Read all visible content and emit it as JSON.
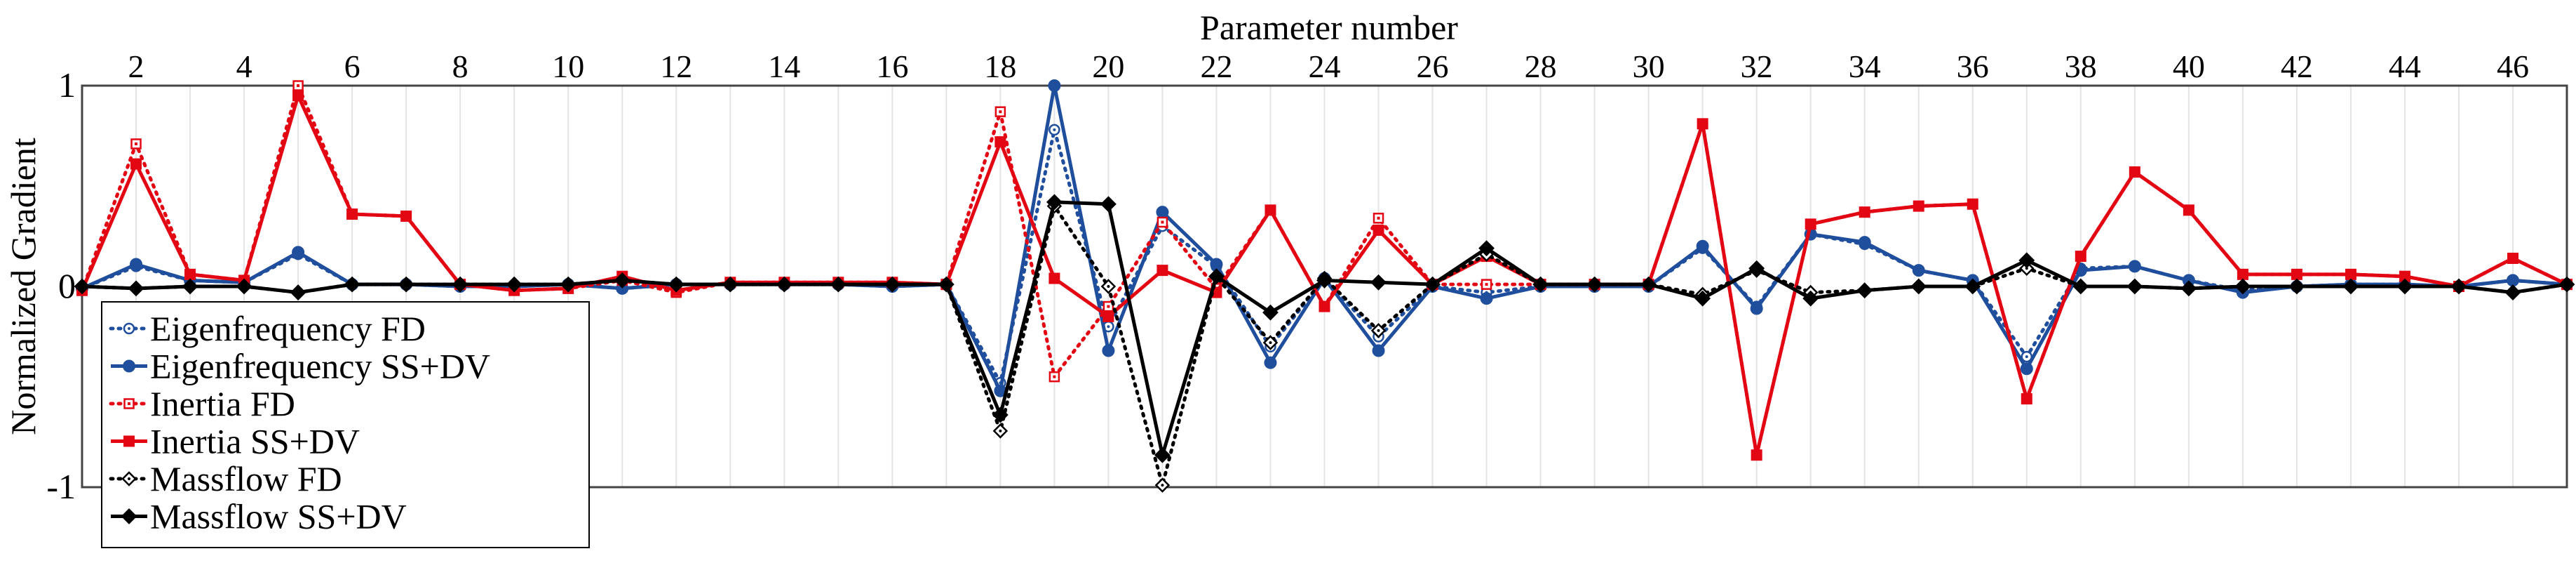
{
  "chart_data": {
    "type": "line",
    "title": "",
    "xlabel": "Parameter number",
    "ylabel": "Normalized Gradient",
    "xlim": [
      1,
      47
    ],
    "ylim": [
      -1,
      1
    ],
    "x_ticks": [
      2,
      4,
      6,
      8,
      10,
      12,
      14,
      16,
      18,
      20,
      22,
      24,
      26,
      28,
      30,
      32,
      34,
      36,
      38,
      40,
      42,
      44,
      46
    ],
    "y_ticks": [
      1,
      0,
      -1
    ],
    "y_tick_labels": [
      "1",
      "0",
      "-1"
    ],
    "grid": "vertical",
    "legend_position": "bottom-left",
    "x": [
      1,
      2,
      3,
      4,
      5,
      6,
      7,
      8,
      9,
      10,
      11,
      12,
      13,
      14,
      15,
      16,
      17,
      18,
      19,
      20,
      21,
      22,
      23,
      24,
      25,
      26,
      27,
      28,
      29,
      30,
      31,
      32,
      33,
      34,
      35,
      36,
      37,
      38,
      39,
      40,
      41,
      42,
      43,
      44,
      45,
      46,
      47
    ],
    "series": [
      {
        "name": "Eigenfrequency FD",
        "color": "#1f4e9c",
        "style": "dotted",
        "marker": "circle-open",
        "values": [
          -0.01,
          0.1,
          0.03,
          0.02,
          0.16,
          0.01,
          0.01,
          0.0,
          0.0,
          0.01,
          -0.01,
          0.01,
          0.01,
          0.01,
          0.01,
          0.0,
          0.01,
          -0.48,
          0.78,
          -0.2,
          0.3,
          0.1,
          -0.3,
          0.04,
          -0.25,
          0.0,
          -0.03,
          0.0,
          0.0,
          0.0,
          0.19,
          -0.1,
          0.26,
          0.21,
          0.08,
          0.03,
          -0.35,
          0.09,
          0.1,
          0.03,
          -0.02,
          0.0,
          0.01,
          0.01,
          0.0,
          0.03,
          0.01
        ]
      },
      {
        "name": "Eigenfrequency SS+DV",
        "color": "#1f4e9c",
        "style": "solid",
        "marker": "circle-filled",
        "values": [
          -0.01,
          0.11,
          0.03,
          0.02,
          0.17,
          0.01,
          0.01,
          0.0,
          0.0,
          0.01,
          -0.01,
          0.01,
          0.01,
          0.01,
          0.01,
          0.0,
          0.01,
          -0.52,
          1.0,
          -0.32,
          0.37,
          0.11,
          -0.38,
          0.04,
          -0.32,
          0.0,
          -0.06,
          0.0,
          0.0,
          0.0,
          0.2,
          -0.11,
          0.26,
          0.22,
          0.08,
          0.03,
          -0.41,
          0.08,
          0.1,
          0.03,
          -0.03,
          0.0,
          0.01,
          0.01,
          0.0,
          0.03,
          0.01
        ]
      },
      {
        "name": "Inertia FD",
        "color": "#e30613",
        "style": "dotted",
        "marker": "square-open",
        "values": [
          -0.02,
          0.71,
          0.06,
          0.03,
          1.0,
          0.36,
          0.35,
          0.01,
          -0.02,
          -0.01,
          0.03,
          -0.03,
          0.02,
          0.02,
          0.02,
          0.02,
          0.01,
          0.87,
          -0.45,
          -0.1,
          0.32,
          -0.01,
          0.38,
          -0.1,
          0.34,
          0.01,
          0.01,
          0.01,
          0.01,
          0.01,
          0.81,
          -0.84,
          0.31,
          0.37,
          0.4,
          0.41,
          -0.56,
          0.15,
          0.57,
          0.38,
          0.06,
          0.06,
          0.06,
          0.05,
          0.0,
          0.14,
          0.01
        ]
      },
      {
        "name": "Inertia SS+DV",
        "color": "#e30613",
        "style": "solid",
        "marker": "square-filled",
        "values": [
          -0.02,
          0.61,
          0.06,
          0.03,
          0.95,
          0.36,
          0.35,
          0.01,
          -0.02,
          -0.01,
          0.05,
          -0.02,
          0.02,
          0.02,
          0.02,
          0.02,
          0.01,
          0.72,
          0.04,
          -0.15,
          0.08,
          -0.03,
          0.38,
          -0.1,
          0.28,
          0.01,
          0.15,
          0.01,
          0.01,
          0.01,
          0.81,
          -0.84,
          0.31,
          0.37,
          0.4,
          0.41,
          -0.56,
          0.15,
          0.57,
          0.38,
          0.06,
          0.06,
          0.06,
          0.05,
          0.0,
          0.14,
          0.01
        ]
      },
      {
        "name": "Massflow FD",
        "color": "#000000",
        "style": "dotted",
        "marker": "diamond-open",
        "values": [
          0.0,
          -0.01,
          0.0,
          0.0,
          -0.03,
          0.01,
          0.01,
          0.01,
          0.01,
          0.01,
          0.03,
          0.01,
          0.01,
          0.01,
          0.01,
          0.01,
          0.01,
          -0.72,
          0.4,
          0.0,
          -0.99,
          0.05,
          -0.28,
          0.04,
          -0.22,
          0.01,
          0.16,
          0.01,
          0.01,
          0.01,
          -0.04,
          0.08,
          -0.03,
          -0.02,
          0.0,
          0.0,
          0.09,
          0.0,
          0.0,
          -0.01,
          0.0,
          0.0,
          0.0,
          0.0,
          0.0,
          -0.03,
          0.01
        ]
      },
      {
        "name": "Massflow SS+DV",
        "color": "#000000",
        "style": "solid",
        "marker": "diamond-filled",
        "values": [
          0.0,
          -0.01,
          0.0,
          0.0,
          -0.03,
          0.01,
          0.01,
          0.01,
          0.01,
          0.01,
          0.03,
          0.01,
          0.01,
          0.01,
          0.01,
          0.01,
          0.01,
          -0.64,
          0.42,
          0.41,
          -0.84,
          0.05,
          -0.13,
          0.03,
          0.02,
          0.01,
          0.19,
          0.01,
          0.01,
          0.01,
          -0.06,
          0.09,
          -0.06,
          -0.02,
          0.0,
          0.0,
          0.13,
          0.0,
          0.0,
          -0.01,
          0.0,
          0.0,
          0.0,
          0.0,
          0.0,
          -0.03,
          0.01
        ]
      }
    ]
  }
}
